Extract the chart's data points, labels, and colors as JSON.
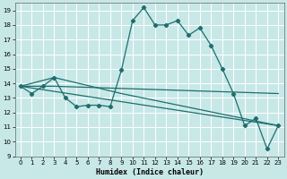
{
  "xlabel": "Humidex (Indice chaleur)",
  "xlim": [
    -0.5,
    23.5
  ],
  "ylim": [
    9,
    19.5
  ],
  "yticks": [
    9,
    10,
    11,
    12,
    13,
    14,
    15,
    16,
    17,
    18,
    19
  ],
  "xticks": [
    0,
    1,
    2,
    3,
    4,
    5,
    6,
    7,
    8,
    9,
    10,
    11,
    12,
    13,
    14,
    15,
    16,
    17,
    18,
    19,
    20,
    21,
    22,
    23
  ],
  "bg_color": "#c8e8e8",
  "grid_color": "#b0d8d8",
  "line_color": "#1e6e6e",
  "lines": [
    {
      "x": [
        0,
        1,
        2,
        3,
        4,
        5,
        6,
        7,
        8,
        9,
        10,
        11,
        12,
        13,
        14,
        15,
        16,
        17,
        18,
        19,
        20,
        21,
        22,
        23
      ],
      "y": [
        13.8,
        13.3,
        13.8,
        14.4,
        13.0,
        12.4,
        12.5,
        12.5,
        12.4,
        14.9,
        18.3,
        19.2,
        18.0,
        18.0,
        18.3,
        17.3,
        17.8,
        16.6,
        15.0,
        13.3,
        11.1,
        11.6,
        9.5,
        11.1
      ],
      "marker": true
    },
    {
      "x": [
        0,
        2,
        3,
        23
      ],
      "y": [
        13.8,
        13.8,
        13.8,
        13.3
      ],
      "marker": false
    },
    {
      "x": [
        0,
        3,
        9,
        23
      ],
      "y": [
        13.8,
        14.4,
        13.3,
        11.1
      ],
      "marker": false
    },
    {
      "x": [
        0,
        23
      ],
      "y": [
        13.8,
        11.1
      ],
      "marker": false
    }
  ]
}
